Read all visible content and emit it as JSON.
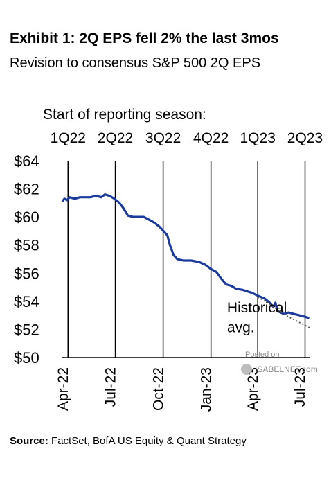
{
  "header": {
    "title": "Exhibit 1: 2Q EPS fell 2% the last 3mos",
    "subtitle": "Revision to consensus S&P 500 2Q EPS"
  },
  "chart_data": {
    "type": "line",
    "annotation_title": "Start of reporting  season:",
    "season_markers": [
      {
        "label": "1Q22",
        "x": "2022-04-12"
      },
      {
        "label": "2Q22",
        "x": "2022-07-12"
      },
      {
        "label": "3Q22",
        "x": "2022-10-12"
      },
      {
        "label": "4Q22",
        "x": "2023-01-12"
      },
      {
        "label": "1Q23",
        "x": "2023-04-12"
      },
      {
        "label": "2Q23",
        "x": "2023-07-12"
      }
    ],
    "x_ticks": [
      "Apr-22",
      "Jul-22",
      "Oct-22",
      "Jan-23",
      "Apr-23",
      "Jul-23"
    ],
    "x_range": [
      "2022-04-01",
      "2023-07-22"
    ],
    "y_ticks": [
      "$50",
      "$52",
      "$54",
      "$56",
      "$58",
      "$60",
      "$62",
      "$64"
    ],
    "ylim": [
      50,
      64
    ],
    "series": [
      {
        "style": "solid",
        "color": "#1a3a9e",
        "points": [
          [
            "2022-04-01",
            61.1
          ],
          [
            "2022-04-05",
            61.3
          ],
          [
            "2022-04-10",
            61.2
          ],
          [
            "2022-04-15",
            61.4
          ],
          [
            "2022-04-25",
            61.3
          ],
          [
            "2022-05-05",
            61.4
          ],
          [
            "2022-05-15",
            61.4
          ],
          [
            "2022-05-25",
            61.4
          ],
          [
            "2022-06-05",
            61.5
          ],
          [
            "2022-06-15",
            61.4
          ],
          [
            "2022-06-22",
            61.6
          ],
          [
            "2022-07-01",
            61.5
          ],
          [
            "2022-07-10",
            61.3
          ],
          [
            "2022-07-20",
            61.0
          ],
          [
            "2022-07-28",
            60.6
          ],
          [
            "2022-08-05",
            60.1
          ],
          [
            "2022-08-15",
            60.0
          ],
          [
            "2022-08-25",
            60.0
          ],
          [
            "2022-09-05",
            60.0
          ],
          [
            "2022-09-15",
            59.8
          ],
          [
            "2022-09-25",
            59.6
          ],
          [
            "2022-10-05",
            59.3
          ],
          [
            "2022-10-15",
            58.9
          ],
          [
            "2022-10-20",
            58.7
          ],
          [
            "2022-10-25",
            58.0
          ],
          [
            "2022-11-01",
            57.3
          ],
          [
            "2022-11-08",
            57.0
          ],
          [
            "2022-11-20",
            56.9
          ],
          [
            "2022-12-05",
            56.9
          ],
          [
            "2022-12-20",
            56.8
          ],
          [
            "2023-01-01",
            56.6
          ],
          [
            "2023-01-12",
            56.3
          ],
          [
            "2023-01-22",
            56.1
          ],
          [
            "2023-02-01",
            55.6
          ],
          [
            "2023-02-10",
            55.2
          ],
          [
            "2023-02-20",
            55.1
          ],
          [
            "2023-03-01",
            54.9
          ],
          [
            "2023-03-15",
            54.8
          ],
          [
            "2023-04-01",
            54.6
          ],
          [
            "2023-04-12",
            54.4
          ],
          [
            "2023-04-25",
            54.2
          ],
          [
            "2023-05-05",
            53.9
          ],
          [
            "2023-05-12",
            53.6
          ],
          [
            "2023-05-16",
            53.9
          ],
          [
            "2023-05-20",
            53.3
          ],
          [
            "2023-06-01",
            53.1
          ],
          [
            "2023-06-10",
            53.2
          ],
          [
            "2023-06-20",
            53.1
          ],
          [
            "2023-07-01",
            53.0
          ],
          [
            "2023-07-12",
            52.9
          ],
          [
            "2023-07-20",
            52.8
          ]
        ]
      },
      {
        "style": "dotted",
        "color": "#555555",
        "points": [
          [
            "2023-04-12",
            54.3
          ],
          [
            "2023-05-01",
            53.9
          ],
          [
            "2023-05-20",
            53.4
          ],
          [
            "2023-06-10",
            52.9
          ],
          [
            "2023-07-01",
            52.5
          ],
          [
            "2023-07-22",
            52.1
          ]
        ]
      }
    ],
    "annotations": [
      {
        "text": "Historical",
        "x": "2023-02-12",
        "y": 53.2
      },
      {
        "text": "avg.",
        "x": "2023-02-12",
        "y": 51.8
      }
    ]
  },
  "watermark": {
    "line1": "Posted on",
    "line2": "ISABELNET.com"
  },
  "footer": {
    "source_label": "Source:",
    "source_text": " FactSet, BofA US Equity & Quant Strategy"
  }
}
